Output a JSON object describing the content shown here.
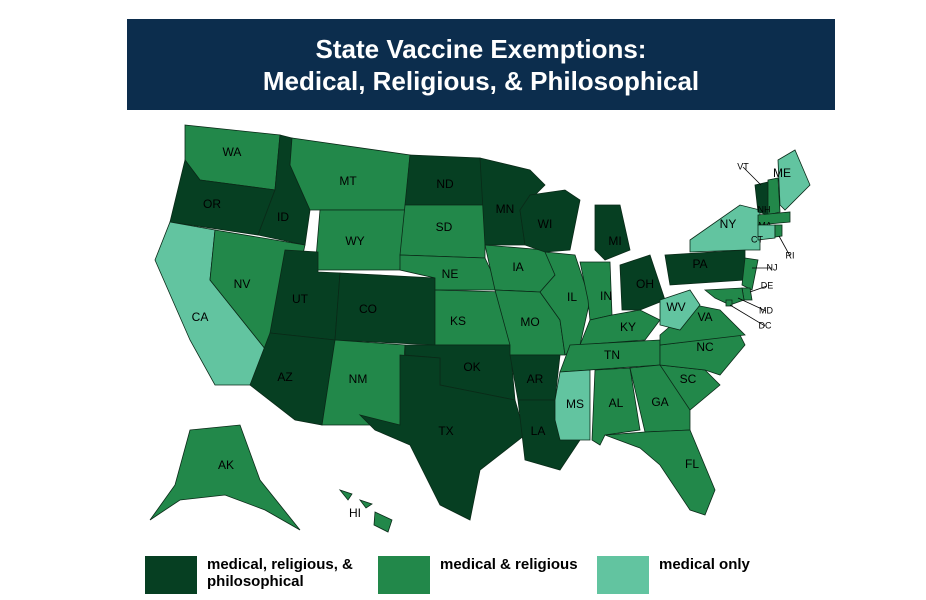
{
  "header": {
    "title_lines": [
      "State Vaccine Exemptions:",
      "Medical, Religious, & Philosophical"
    ]
  },
  "legend": [
    {
      "label": "medical, religious, & philosophical",
      "color": "#063f22"
    },
    {
      "label": "medical & religious",
      "color": "#22884a"
    },
    {
      "label": "medical only",
      "color": "#62c4a0"
    }
  ],
  "states": [
    {
      "label": "WA",
      "category": 1
    },
    {
      "label": "OR",
      "category": 0
    },
    {
      "label": "CA",
      "category": 2
    },
    {
      "label": "ID",
      "category": 0
    },
    {
      "label": "NV",
      "category": 1
    },
    {
      "label": "MT",
      "category": 1
    },
    {
      "label": "WY",
      "category": 1
    },
    {
      "label": "UT",
      "category": 0
    },
    {
      "label": "CO",
      "category": 0
    },
    {
      "label": "AZ",
      "category": 0
    },
    {
      "label": "NM",
      "category": 1
    },
    {
      "label": "ND",
      "category": 0
    },
    {
      "label": "SD",
      "category": 1
    },
    {
      "label": "NE",
      "category": 1
    },
    {
      "label": "KS",
      "category": 1
    },
    {
      "label": "OK",
      "category": 0
    },
    {
      "label": "TX",
      "category": 0
    },
    {
      "label": "MN",
      "category": 0
    },
    {
      "label": "IA",
      "category": 1
    },
    {
      "label": "MO",
      "category": 1
    },
    {
      "label": "AR",
      "category": 0
    },
    {
      "label": "LA",
      "category": 0
    },
    {
      "label": "WI",
      "category": 0
    },
    {
      "label": "MI",
      "category": 0
    },
    {
      "label": "IL",
      "category": 1
    },
    {
      "label": "IN",
      "category": 1
    },
    {
      "label": "OH",
      "category": 0
    },
    {
      "label": "KY",
      "category": 1
    },
    {
      "label": "TN",
      "category": 1
    },
    {
      "label": "MS",
      "category": 2
    },
    {
      "label": "AL",
      "category": 1
    },
    {
      "label": "GA",
      "category": 1
    },
    {
      "label": "FL",
      "category": 1
    },
    {
      "label": "SC",
      "category": 1
    },
    {
      "label": "NC",
      "category": 1
    },
    {
      "label": "VA",
      "category": 1
    },
    {
      "label": "WV",
      "category": 2
    },
    {
      "label": "PA",
      "category": 0
    },
    {
      "label": "NY",
      "category": 2
    },
    {
      "label": "VT",
      "category": 0
    },
    {
      "label": "NH",
      "category": 1
    },
    {
      "label": "ME",
      "category": 2
    },
    {
      "label": "MA",
      "category": 1
    },
    {
      "label": "CT",
      "category": 2
    },
    {
      "label": "RI",
      "category": 1
    },
    {
      "label": "NJ",
      "category": 1
    },
    {
      "label": "DE",
      "category": 1
    },
    {
      "label": "MD",
      "category": 1
    },
    {
      "label": "DC",
      "category": 1
    },
    {
      "label": "AK",
      "category": 1
    },
    {
      "label": "HI",
      "category": 1
    }
  ]
}
